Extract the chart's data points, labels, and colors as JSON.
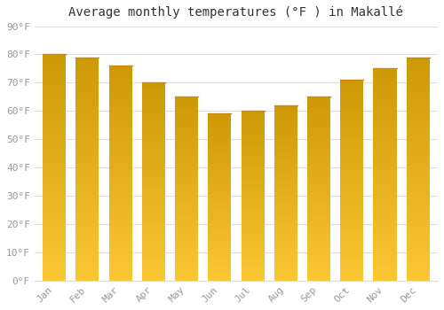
{
  "title": "Average monthly temperatures (°F ) in Makallé",
  "months": [
    "Jan",
    "Feb",
    "Mar",
    "Apr",
    "May",
    "Jun",
    "Jul",
    "Aug",
    "Sep",
    "Oct",
    "Nov",
    "Dec"
  ],
  "values": [
    80,
    79,
    76,
    70,
    65,
    59,
    60,
    62,
    65,
    71,
    75,
    79
  ],
  "bar_color_top": "#F5A623",
  "bar_color_bottom": "#FFCA6A",
  "bar_edge_color": "#C8870A",
  "background_color": "#FFFFFF",
  "plot_bg_color": "#FFFFFF",
  "grid_color": "#DDDDDD",
  "ylim": [
    0,
    90
  ],
  "yticks": [
    0,
    10,
    20,
    30,
    40,
    50,
    60,
    70,
    80,
    90
  ],
  "tick_color": "#999999",
  "title_fontsize": 10,
  "tick_fontsize": 8,
  "figsize": [
    5.0,
    3.5
  ],
  "dpi": 100,
  "bar_width": 0.7
}
